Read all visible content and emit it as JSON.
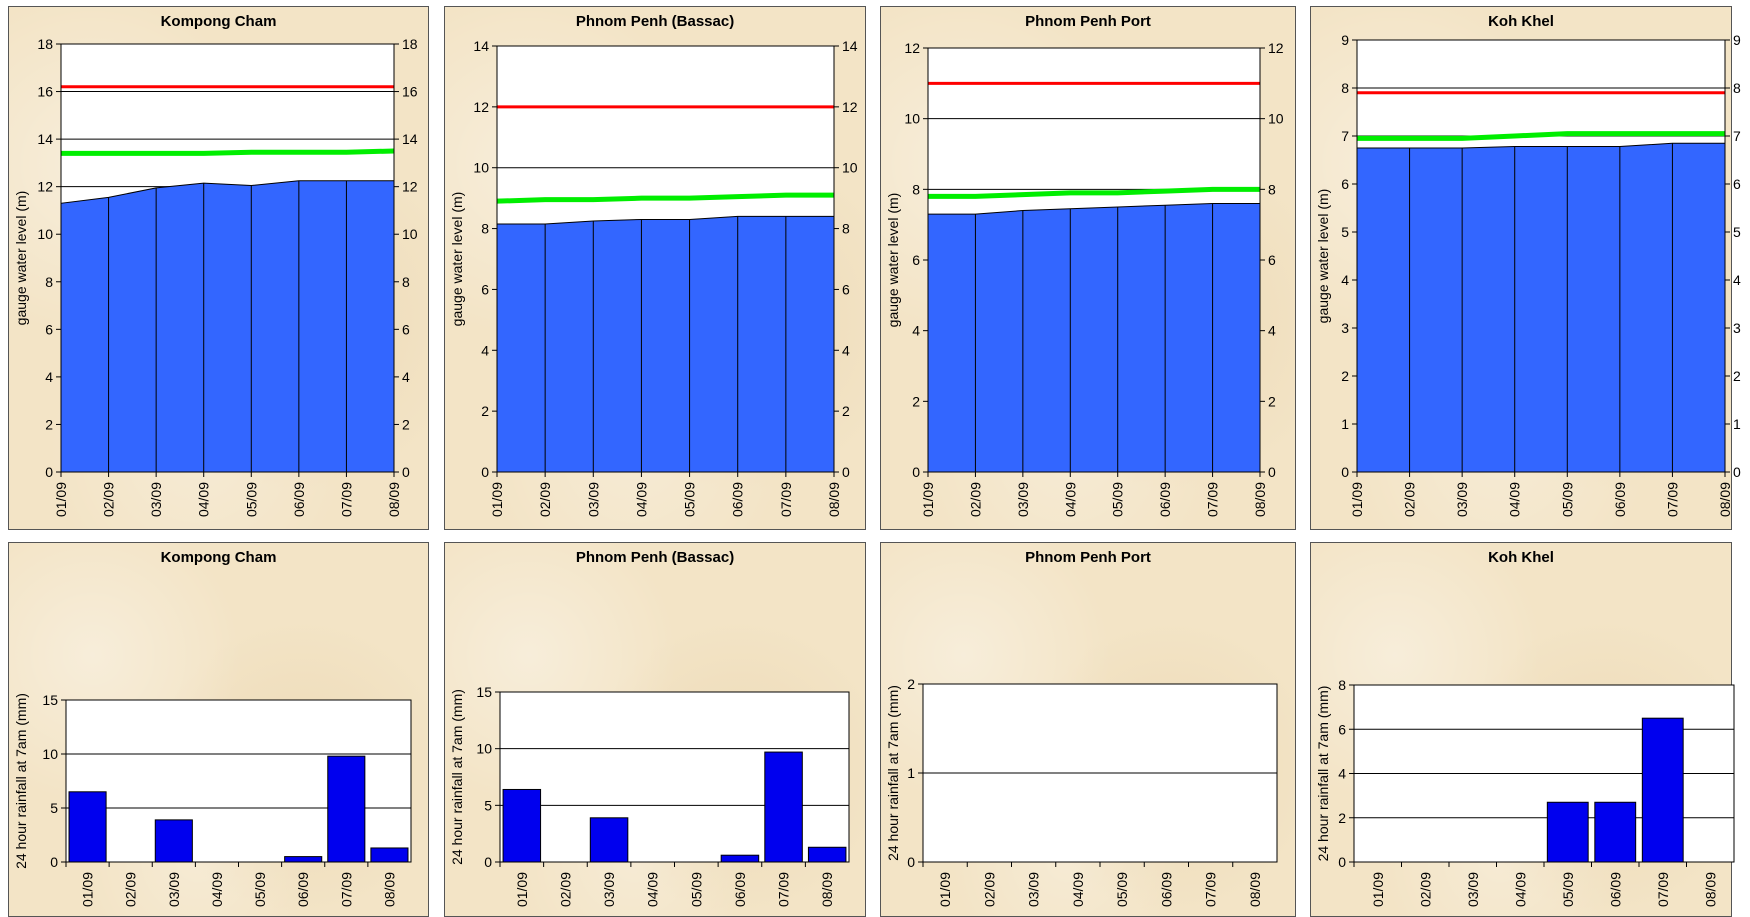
{
  "chart_data": [
    {
      "type": "area",
      "title": "Kompong Cham",
      "ylabel": "gauge water level (m)",
      "categories": [
        "01/09",
        "02/09",
        "03/09",
        "04/09",
        "05/09",
        "06/09",
        "07/09",
        "08/09"
      ],
      "ylim": [
        0,
        18
      ],
      "yticks": [
        0,
        2,
        4,
        6,
        8,
        10,
        12,
        14,
        16,
        18
      ],
      "right_axis": true,
      "values": [
        11.3,
        11.55,
        11.95,
        12.15,
        12.05,
        12.25,
        12.25,
        12.25
      ],
      "lines": [
        {
          "color": "#ff0000",
          "values": [
            16.2,
            16.2,
            16.2,
            16.2,
            16.2,
            16.2,
            16.2,
            16.2
          ]
        },
        {
          "color": "#00ee00",
          "values": [
            13.4,
            13.4,
            13.4,
            13.4,
            13.45,
            13.45,
            13.45,
            13.5
          ]
        }
      ],
      "grid": true
    },
    {
      "type": "area",
      "title": "Phnom Penh (Bassac)",
      "ylabel": "gauge water level (m)",
      "categories": [
        "01/09",
        "02/09",
        "03/09",
        "04/09",
        "05/09",
        "06/09",
        "07/09",
        "08/09"
      ],
      "ylim": [
        0,
        14
      ],
      "yticks": [
        0,
        2,
        4,
        6,
        8,
        10,
        12,
        14
      ],
      "right_axis": true,
      "values": [
        8.15,
        8.15,
        8.25,
        8.3,
        8.3,
        8.4,
        8.4,
        8.4
      ],
      "lines": [
        {
          "color": "#ff0000",
          "values": [
            12,
            12,
            12,
            12,
            12,
            12,
            12,
            12
          ]
        },
        {
          "color": "#00ee00",
          "values": [
            8.9,
            8.95,
            8.95,
            9.0,
            9.0,
            9.05,
            9.1,
            9.1
          ]
        }
      ],
      "grid": true
    },
    {
      "type": "area",
      "title": "Phnom Penh Port",
      "ylabel": "gauge water level (m)",
      "categories": [
        "01/09",
        "02/09",
        "03/09",
        "04/09",
        "05/09",
        "06/09",
        "07/09",
        "08/09"
      ],
      "ylim": [
        0,
        12
      ],
      "yticks": [
        0,
        2,
        4,
        6,
        8,
        10,
        12
      ],
      "right_axis": true,
      "values": [
        7.3,
        7.3,
        7.4,
        7.45,
        7.5,
        7.55,
        7.6,
        7.6
      ],
      "lines": [
        {
          "color": "#ff0000",
          "values": [
            11,
            11,
            11,
            11,
            11,
            11,
            11,
            11
          ]
        },
        {
          "color": "#00ee00",
          "values": [
            7.8,
            7.8,
            7.85,
            7.9,
            7.9,
            7.95,
            8.0,
            8.0
          ]
        }
      ],
      "grid": true
    },
    {
      "type": "area",
      "title": "Koh Khel",
      "ylabel": "gauge water level (m)",
      "categories": [
        "01/09",
        "02/09",
        "03/09",
        "04/09",
        "05/09",
        "06/09",
        "07/09",
        "08/09"
      ],
      "ylim": [
        0,
        9
      ],
      "yticks": [
        0,
        1,
        2,
        3,
        4,
        5,
        6,
        7,
        8,
        9
      ],
      "right_axis": true,
      "values": [
        6.75,
        6.75,
        6.75,
        6.78,
        6.78,
        6.78,
        6.85,
        6.85
      ],
      "lines": [
        {
          "color": "#ff0000",
          "values": [
            7.9,
            7.9,
            7.9,
            7.9,
            7.9,
            7.9,
            7.9,
            7.9
          ]
        },
        {
          "color": "#00ee00",
          "values": [
            6.95,
            6.95,
            6.95,
            7.0,
            7.05,
            7.05,
            7.05,
            7.05
          ]
        }
      ],
      "grid": true
    },
    {
      "type": "bar",
      "title": "Kompong Cham",
      "ylabel": "24 hour rainfall at 7am (mm)",
      "categories": [
        "01/09",
        "02/09",
        "03/09",
        "04/09",
        "05/09",
        "06/09",
        "07/09",
        "08/09"
      ],
      "ylim": [
        0,
        15
      ],
      "yticks": [
        0,
        5,
        10,
        15
      ],
      "values": [
        6.5,
        0,
        3.9,
        0,
        0,
        0.5,
        9.8,
        1.3
      ],
      "grid": true
    },
    {
      "type": "bar",
      "title": "Phnom Penh (Bassac)",
      "ylabel": "24 hour rainfall at 7am (mm)",
      "categories": [
        "01/09",
        "02/09",
        "03/09",
        "04/09",
        "05/09",
        "06/09",
        "07/09",
        "08/09"
      ],
      "ylim": [
        0,
        15
      ],
      "yticks": [
        0,
        5,
        10,
        15
      ],
      "values": [
        6.4,
        0,
        3.9,
        0,
        0,
        0.6,
        9.7,
        1.3
      ],
      "grid": true
    },
    {
      "type": "bar",
      "title": "Phnom Penh Port",
      "ylabel": "24 hour rainfall at 7am (mm)",
      "categories": [
        "01/09",
        "02/09",
        "03/09",
        "04/09",
        "05/09",
        "06/09",
        "07/09",
        "08/09"
      ],
      "ylim": [
        0,
        2
      ],
      "yticks": [
        0,
        1,
        2
      ],
      "values": [
        0,
        0,
        0,
        0,
        0,
        0,
        0,
        0
      ],
      "grid": true
    },
    {
      "type": "bar",
      "title": "Koh Khel",
      "ylabel": "24 hour rainfall at 7am (mm)",
      "categories": [
        "01/09",
        "02/09",
        "03/09",
        "04/09",
        "05/09",
        "06/09",
        "07/09",
        "08/09"
      ],
      "ylim": [
        0,
        8
      ],
      "yticks": [
        0,
        2,
        4,
        6,
        8
      ],
      "values": [
        0,
        0,
        0,
        0,
        2.7,
        2.7,
        6.5,
        0
      ],
      "grid": true
    }
  ],
  "colors": {
    "area_fill": "#3366ff",
    "bar_fill": "#0000ee",
    "panel_bg": "#f3e4c6",
    "plot_bg": "#ffffff"
  }
}
